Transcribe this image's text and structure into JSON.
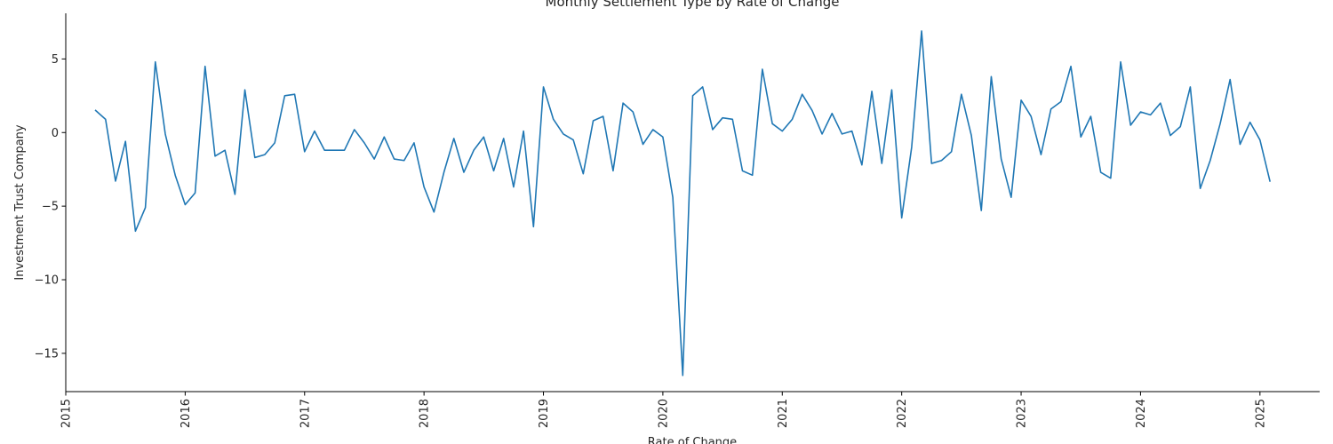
{
  "chart_data": {
    "type": "line",
    "title": "Monthly Settlement Type by Rate of Change",
    "xlabel": "Rate of Change",
    "ylabel": "Investment Trust Company",
    "x_tick_labels": [
      "2015",
      "2016",
      "2017",
      "2018",
      "2019",
      "2020",
      "2021",
      "2022",
      "2023",
      "2024",
      "2025"
    ],
    "y_ticks": [
      5,
      0,
      -5,
      -10,
      -15
    ],
    "y_tick_labels": [
      "5",
      "0",
      "−5",
      "−10",
      "−15"
    ],
    "xlim": [
      "2015-01",
      "2025-07"
    ],
    "ylim": [
      -17.6,
      8.1
    ],
    "grid": false,
    "series": [
      {
        "color": "#1f77b4",
        "start": "2015-04",
        "values": [
          1.5,
          0.9,
          -3.3,
          -0.6,
          -6.7,
          -5.1,
          4.8,
          -0.1,
          -2.9,
          -4.9,
          -4.1,
          4.5,
          -1.6,
          -1.2,
          -4.2,
          2.9,
          -1.7,
          -1.5,
          -0.7,
          2.5,
          2.6,
          -1.3,
          0.1,
          -1.2,
          -1.2,
          -1.2,
          0.2,
          -0.7,
          -1.8,
          -0.3,
          -1.8,
          -1.9,
          -0.7,
          -3.7,
          -5.4,
          -2.7,
          -0.4,
          -2.7,
          -1.2,
          -0.3,
          -2.6,
          -0.4,
          -3.7,
          0.1,
          -6.4,
          3.1,
          0.9,
          -0.1,
          -0.5,
          -2.8,
          0.8,
          1.1,
          -2.6,
          2.0,
          1.4,
          -0.8,
          0.2,
          -0.3,
          -4.4,
          -16.5,
          2.5,
          3.1,
          0.2,
          1.0,
          0.9,
          -2.6,
          -2.9,
          4.3,
          0.6,
          0.1,
          0.9,
          2.6,
          1.5,
          -0.1,
          1.3,
          -0.1,
          0.1,
          -2.2,
          2.8,
          -2.1,
          2.9,
          -5.8,
          -1.0,
          6.9,
          -2.1,
          -1.9,
          -1.3,
          2.6,
          -0.2,
          -5.3,
          3.8,
          -1.8,
          -4.4,
          2.2,
          1.1,
          -1.5,
          1.6,
          2.1,
          4.5,
          -0.3,
          1.1,
          -2.7,
          -3.1,
          4.8,
          0.5,
          1.4,
          1.2,
          2.0,
          -0.2,
          0.4,
          3.1,
          -3.8,
          -1.9,
          0.6,
          3.6,
          -0.8,
          0.7,
          -0.5,
          -3.3
        ]
      }
    ]
  }
}
